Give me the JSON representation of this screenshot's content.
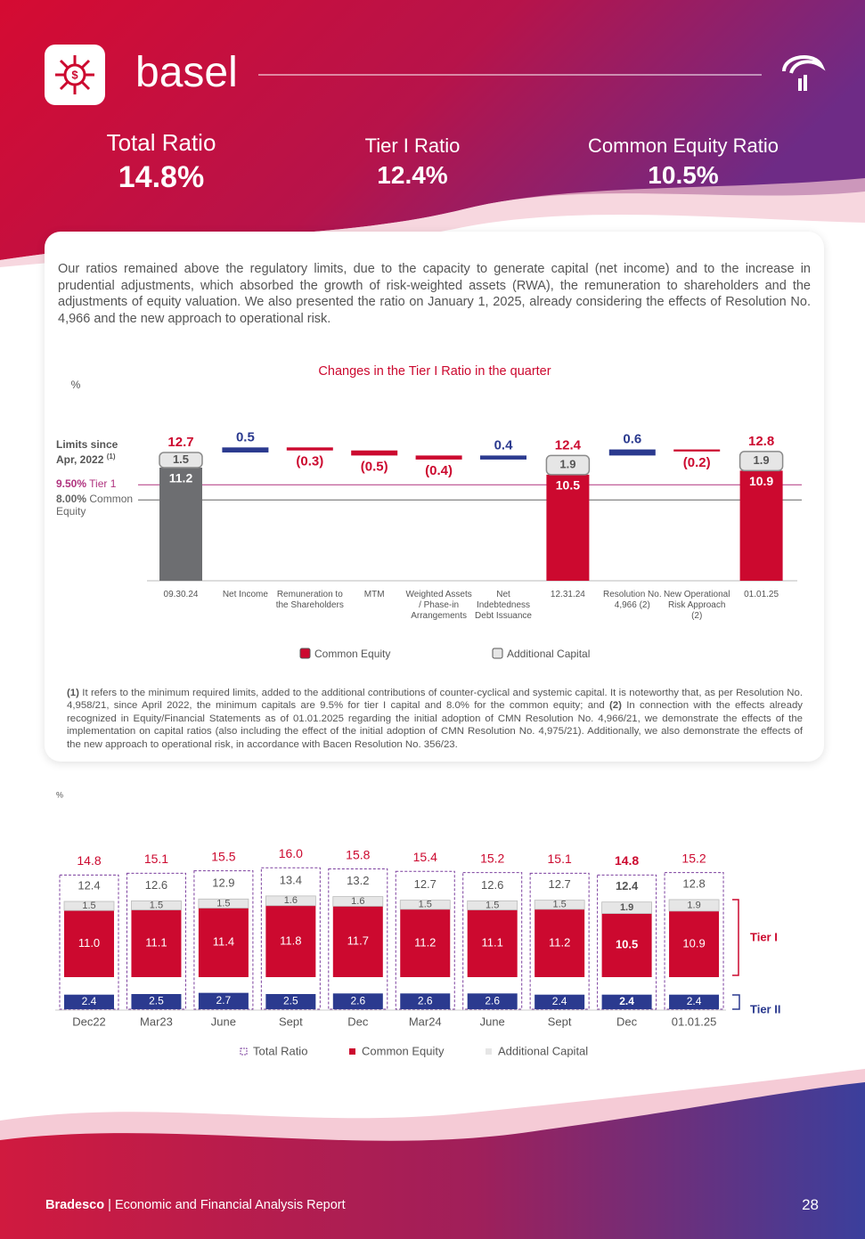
{
  "header": {
    "title": "basel"
  },
  "kpis": [
    {
      "label": "Total Ratio",
      "value": "14.8%"
    },
    {
      "label": "Tier I Ratio",
      "value": "12.4%"
    },
    {
      "label": "Common Equity Ratio",
      "value": "10.5%"
    }
  ],
  "intro": "Our ratios remained above the regulatory limits, due to the capacity to generate capital (net income) and to the increase in prudential adjustments, which absorbed the growth of risk-weighted assets (RWA), the remuneration to shareholders and the adjustments of equity valuation. We also presented the ratio on January 1, 2025, already considering the effects of Resolution No. 4,966 and the new approach to operational risk.",
  "chart_data": [
    {
      "type": "waterfall",
      "title": "Changes in the Tier I Ratio in the quarter",
      "unit": "%",
      "limits_note": "Limits since Apr, 2022",
      "limits_note_ref": "(1)",
      "categories": [
        "09.30.24",
        "Net Income",
        "Remuneration to the Shareholders",
        "MTM",
        "Weighted Assets / Phase-in Arrangements",
        "Net Indebtedness Debt Issuance",
        "12.31.24",
        "Resolution No. 4,966 (2)",
        "New Operational Risk Approach (2)",
        "01.01.25"
      ],
      "series": [
        {
          "name": "Common Equity",
          "color": "#cc092f",
          "point_colors": [
            "#6d6e71",
            null,
            null,
            null,
            null,
            null,
            "#cc092f",
            null,
            null,
            "#cc092f"
          ],
          "values": [
            11.2,
            null,
            null,
            null,
            null,
            null,
            10.5,
            null,
            null,
            10.9
          ]
        },
        {
          "name": "Additional Capital",
          "color": "#e6e6e6",
          "values": [
            1.5,
            null,
            null,
            null,
            null,
            null,
            1.9,
            null,
            null,
            1.9
          ]
        }
      ],
      "totals": [
        12.7,
        null,
        null,
        null,
        null,
        null,
        12.4,
        null,
        null,
        12.8
      ],
      "changes": {
        "values": [
          null,
          0.5,
          -0.3,
          -0.5,
          -0.4,
          0.4,
          null,
          0.6,
          -0.2,
          null
        ],
        "value_labels": [
          null,
          "0.5",
          "(0.3)",
          "(0.5)",
          "(0.4)",
          "0.4",
          null,
          "0.6",
          "(0.2)",
          null
        ],
        "colors": {
          "increase": "#2b3a8f",
          "decrease": "#cc092f"
        }
      },
      "reference_lines": [
        {
          "value": 9.5,
          "label": "9.50%",
          "text": "Tier 1",
          "color": "#b0337f"
        },
        {
          "value": 8,
          "label": "8.00%",
          "text": "Common Equity",
          "color": "#666666"
        }
      ]
    },
    {
      "type": "stacked-bar",
      "unit": "%",
      "categories": [
        "Dec22",
        "Mar23",
        "June",
        "Sept",
        "Dec",
        "Mar24",
        "June",
        "Sept",
        "Dec",
        "01.01.25"
      ],
      "series": [
        {
          "name": "Total Ratio",
          "style": "dashed-box",
          "color": "#7b3f9e",
          "values": [
            14.8,
            15.1,
            15.5,
            16.0,
            15.8,
            15.4,
            15.2,
            15.1,
            14.8,
            15.2
          ],
          "value_labels": [
            "14.8",
            "15.1",
            "15.5",
            "16.0",
            "15.8",
            "15.4",
            "15.2",
            "15.1",
            "14.8",
            "15.2"
          ]
        },
        {
          "name": "Common Equity",
          "color": "#cc092f",
          "values": [
            11.0,
            11.1,
            11.4,
            11.8,
            11.7,
            11.2,
            11.1,
            11.2,
            10.5,
            10.9
          ],
          "value_labels": [
            "11.0",
            "11.1",
            "11.4",
            "11.8",
            "11.7",
            "11.2",
            "11.1",
            "11.2",
            "10.5",
            "10.9"
          ]
        },
        {
          "name": "Additional Capital",
          "color": "#e6e6e6",
          "values": [
            1.5,
            1.5,
            1.5,
            1.6,
            1.6,
            1.5,
            1.5,
            1.5,
            1.9,
            1.9
          ]
        }
      ],
      "tier1": {
        "label": "Tier I",
        "color": "#cc092f",
        "values": [
          12.4,
          12.6,
          12.9,
          13.4,
          13.2,
          12.7,
          12.6,
          12.7,
          12.4,
          12.8
        ]
      },
      "tier2": {
        "label": "Tier II",
        "color": "#2b3a8f",
        "values": [
          2.4,
          2.5,
          2.7,
          2.5,
          2.6,
          2.6,
          2.6,
          2.4,
          2.4,
          2.4
        ]
      },
      "bold_index": 8
    }
  ],
  "footnote": {
    "marker1": "(1)",
    "text1": "It refers to the minimum required limits, added to the additional contributions of counter-cyclical and systemic capital. It is noteworthy that, as per Resolution No. 4,958/21, since April 2022, the minimum capitals are 9.5% for tier I capital and 8.0% for the common equity; and",
    "marker2": "(2)",
    "text2": "In connection with the effects already recognized in Equity/Financial Statements as of 01.01.2025 regarding the initial adoption of CMN Resolution No. 4,966/21, we demonstrate the effects of the implementation on capital ratios (also including the effect of the initial adoption of CMN Resolution No. 4,975/21). Additionally, we also demonstrate the effects of the new approach to operational risk, in accordance with Bacen Resolution No. 356/23."
  },
  "footer": {
    "brand": "Bradesco",
    "separator": "|",
    "report": "Economic and Financial Analysis Report",
    "page": 28
  }
}
